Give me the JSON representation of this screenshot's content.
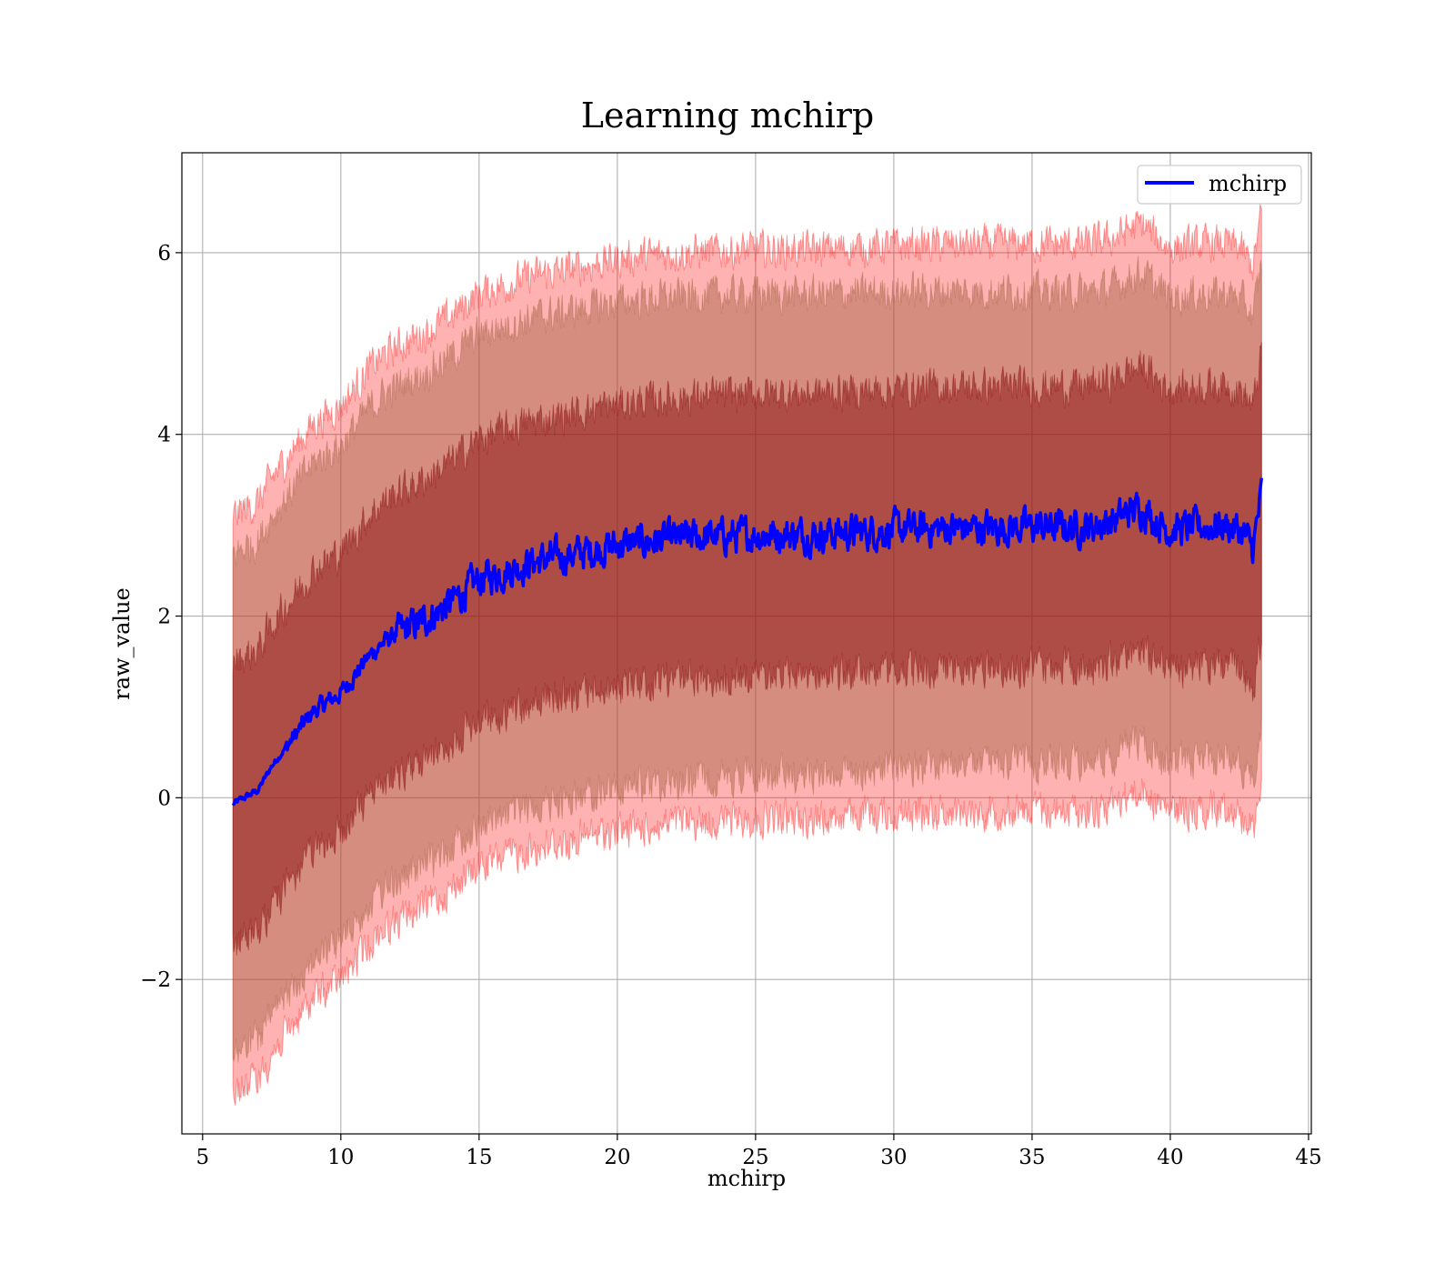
{
  "chart_data": {
    "type": "line",
    "title": "Learning mchirp",
    "xlabel": "mchirp",
    "ylabel": "raw_value",
    "xlim": [
      4.25,
      45.1
    ],
    "ylim": [
      -3.7,
      7.1
    ],
    "x_ticks": [
      5,
      10,
      15,
      20,
      25,
      30,
      35,
      40,
      45
    ],
    "x_tick_labels": [
      "5",
      "10",
      "15",
      "20",
      "25",
      "30",
      "35",
      "40",
      "45"
    ],
    "y_ticks": [
      -2,
      0,
      2,
      4,
      6
    ],
    "y_tick_labels": [
      "−2",
      "0",
      "2",
      "4",
      "6"
    ],
    "grid": true,
    "legend": {
      "position": "top-right",
      "entries": [
        "mchirp"
      ]
    },
    "colors": {
      "line": "#0000ff",
      "band_1sigma": "#800000",
      "band_2sigma": "#a06040",
      "band_3sigma": "#ff0000",
      "grid": "#b0b0b0"
    },
    "series": [
      {
        "name": "mchirp",
        "x": [
          6.1,
          6.5,
          7.0,
          7.5,
          8.0,
          8.5,
          9.0,
          9.5,
          10.0,
          10.5,
          11.0,
          11.5,
          12.0,
          13.0,
          14.0,
          15.0,
          16.0,
          17.0,
          18.0,
          19.0,
          20.0,
          21.0,
          22.0,
          23.0,
          24.0,
          25.0,
          26.0,
          27.0,
          28.0,
          29.0,
          30.0,
          31.0,
          32.0,
          33.0,
          34.0,
          35.0,
          36.0,
          37.0,
          38.0,
          38.5,
          39.0,
          39.5,
          40.0,
          41.0,
          42.0,
          42.5,
          43.0,
          43.3
        ],
        "y": [
          -0.07,
          0.0,
          0.08,
          0.35,
          0.55,
          0.75,
          0.95,
          1.05,
          1.15,
          1.35,
          1.55,
          1.7,
          1.8,
          1.95,
          2.15,
          2.4,
          2.5,
          2.6,
          2.65,
          2.72,
          2.78,
          2.82,
          2.85,
          2.87,
          2.88,
          2.9,
          2.9,
          2.9,
          2.92,
          2.93,
          2.95,
          2.96,
          2.97,
          2.97,
          2.98,
          2.98,
          2.98,
          2.98,
          3.05,
          3.15,
          3.2,
          3.05,
          2.95,
          2.98,
          3.0,
          2.95,
          2.75,
          3.35
        ]
      }
    ],
    "bands": [
      {
        "name": "3-sigma",
        "offset_start": 3.17,
        "offset_end": 3.1
      },
      {
        "name": "2-sigma",
        "offset_start": 2.75,
        "offset_end": 2.55
      },
      {
        "name": "1-sigma",
        "offset_start": 1.55,
        "offset_end": 1.55
      }
    ]
  }
}
